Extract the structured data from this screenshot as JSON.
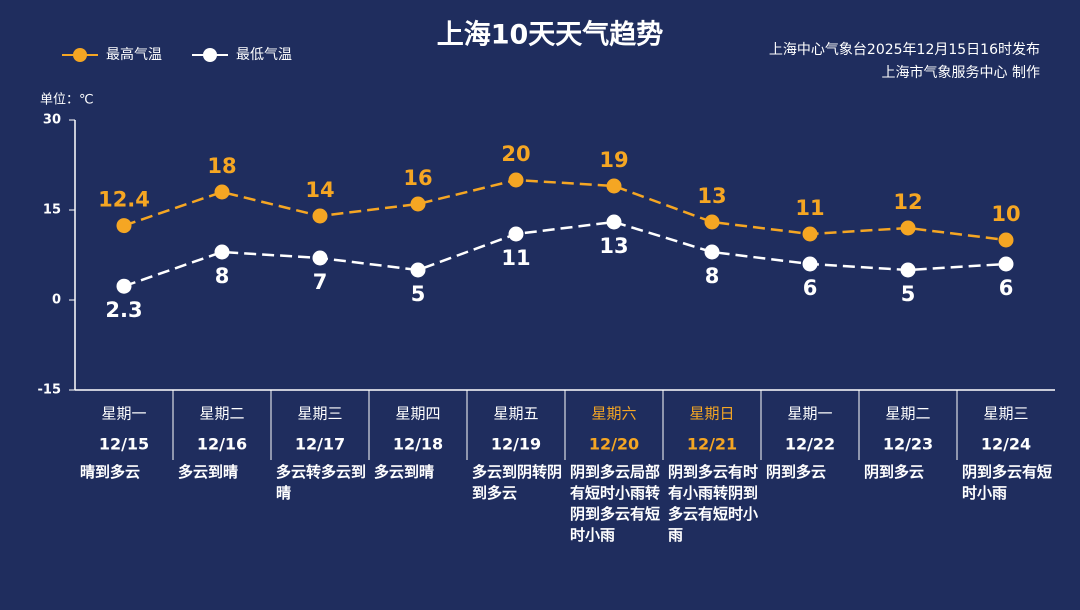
{
  "chart_data": {
    "type": "line",
    "title": "上海10天天气趋势",
    "source": [
      "上海中心气象台2025年12月15日16时发布",
      "上海市气象服务中心  制作"
    ],
    "unit_label": "单位：℃",
    "categories": [
      "星期一",
      "星期二",
      "星期三",
      "星期四",
      "星期五",
      "星期六",
      "星期日",
      "星期一",
      "星期二",
      "星期三"
    ],
    "dates": [
      "12/15",
      "12/16",
      "12/17",
      "12/18",
      "12/19",
      "12/20",
      "12/21",
      "12/22",
      "12/23",
      "12/24"
    ],
    "weather": [
      "晴到多云",
      "多云到晴",
      "多云转多云到晴",
      "多云到晴",
      "多云到阴转阴到多云",
      "阴到多云局部有短时小雨转阴到多云有短时小雨",
      "阴到多云有时有小雨转阴到多云有短时小雨",
      "阴到多云",
      "阴到多云",
      "阴到多云有短时小雨"
    ],
    "highlight_indices": [
      5,
      6
    ],
    "highlight_color": "#f5a623",
    "series": [
      {
        "name": "最高气温",
        "color": "#f5a623",
        "values": [
          12.4,
          18,
          14,
          16,
          20,
          19,
          13,
          11,
          12,
          10
        ]
      },
      {
        "name": "最低气温",
        "color": "#ffffff",
        "values": [
          2.3,
          8,
          7,
          5,
          11,
          13,
          8,
          6,
          5,
          6
        ]
      }
    ],
    "ylim": [
      -15,
      30
    ],
    "yticks": [
      30,
      15,
      0,
      -15
    ]
  }
}
